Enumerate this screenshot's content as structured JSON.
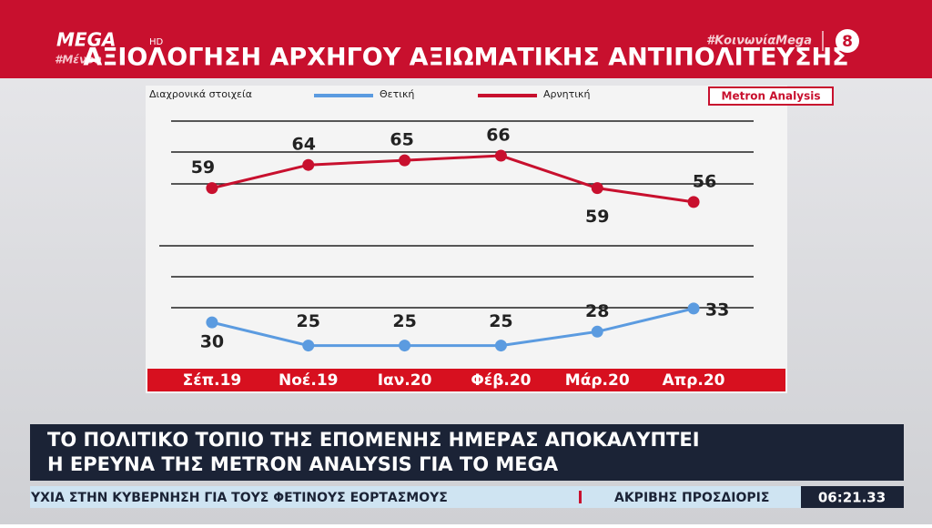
{
  "channel": {
    "logo": "MEGA",
    "logo_suffix": "HD",
    "hashtag": "#ΚοινωνίαMega",
    "number": "8",
    "hashtag_partial": "#Μένου"
  },
  "title": "ΑΞΙΟΛΟΓΗΣΗ ΑΡΧΗΓΟΥ ΑΞΙΩΜΑΤΙΚΗΣ ΑΝΤΙΠΟΛΙΤΕΥΣΗΣ",
  "chart_data": {
    "type": "line",
    "subtitle": "Διαχρονικά στοιχεία",
    "source": "Metron Analysis",
    "categories": [
      "Σέπ.19",
      "Νοέ.19",
      "Ιαν.20",
      "Φέβ.20",
      "Μάρ.20",
      "Απρ.20"
    ],
    "series": [
      {
        "name": "Θετική",
        "color": "#5b9be0",
        "values": [
          30,
          25,
          25,
          25,
          28,
          33
        ]
      },
      {
        "name": "Αρνητική",
        "color": "#c8102e",
        "values": [
          59,
          64,
          65,
          66,
          59,
          56
        ]
      }
    ],
    "ylim": [
      20,
      78
    ],
    "data_labels": true
  },
  "lower_third": {
    "lines": [
      "ΤΟ ΠΟΛΙΤΙΚΟ ΤΟΠΙΟ ΤΗΣ ΕΠΟΜΕΝΗΣ ΗΜΕΡΑΣ ΑΠΟΚΑΛΥΠΤΕΙ",
      "Η ΕΡΕΥΝΑ ΤΗΣ METRON ANALYSIS ΓΙΑ ΤΟ MEGA"
    ]
  },
  "ticker": {
    "items": [
      "ΥΧΙΑ ΣΤΗΝ ΚΥΒΕΡΝΗΣΗ ΓΙΑ ΤΟΥΣ ΦΕΤΙΝΟΥΣ ΕΟΡΤΑΣΜΟΥΣ",
      "ΑΚΡΙΒΗΣ ΠΡΟΣΔΙΟΡΙΣ"
    ],
    "time": "06:21.33"
  }
}
